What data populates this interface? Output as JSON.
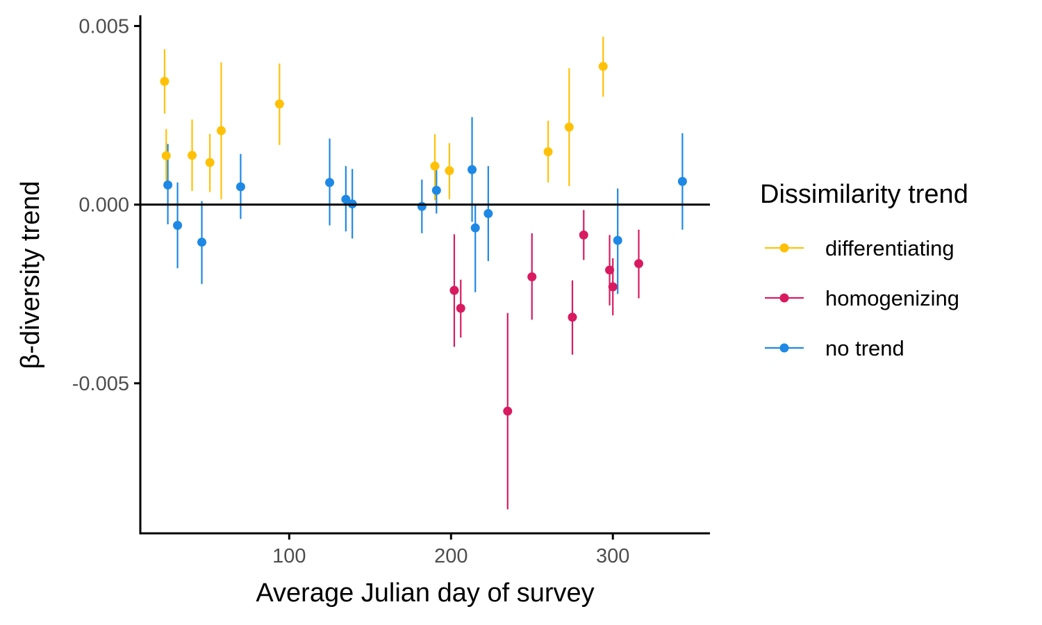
{
  "chart_data": {
    "type": "scatter",
    "xlabel": "Average Julian day of survey",
    "ylabel": "β-diversity trend",
    "xlim": [
      8,
      360
    ],
    "ylim": [
      -0.0092,
      0.0053
    ],
    "xticks": [
      100,
      200,
      300
    ],
    "xtick_labels": [
      "100",
      "200",
      "300"
    ],
    "yticks": [
      0.005,
      0.0,
      -0.005
    ],
    "ytick_labels": [
      "0.005",
      "0.000",
      "-0.005"
    ],
    "reference_line_y": 0,
    "grid": false,
    "legend": {
      "title": "Dissimilarity trend",
      "position": "right"
    },
    "series": [
      {
        "name": "differentiating",
        "color": "#FFC107",
        "points": [
          {
            "x": 23,
            "y": 0.00345,
            "lo": 0.00255,
            "hi": 0.00435
          },
          {
            "x": 24,
            "y": 0.00137,
            "lo": 0.00048,
            "hi": 0.00212
          },
          {
            "x": 40,
            "y": 0.00138,
            "lo": 0.00038,
            "hi": 0.00238
          },
          {
            "x": 51,
            "y": 0.00118,
            "lo": 0.00035,
            "hi": 0.00198
          },
          {
            "x": 58,
            "y": 0.00207,
            "lo": 0.00015,
            "hi": 0.00398
          },
          {
            "x": 94,
            "y": 0.00282,
            "lo": 0.00167,
            "hi": 0.00395
          },
          {
            "x": 190,
            "y": 0.00108,
            "lo": 0.00012,
            "hi": 0.00197
          },
          {
            "x": 199,
            "y": 0.00095,
            "lo": 0.00015,
            "hi": 0.00172
          },
          {
            "x": 260,
            "y": 0.00148,
            "lo": 0.00062,
            "hi": 0.00235
          },
          {
            "x": 273,
            "y": 0.00217,
            "lo": 0.00052,
            "hi": 0.00382
          },
          {
            "x": 294,
            "y": 0.00387,
            "lo": 0.00302,
            "hi": 0.0047
          }
        ]
      },
      {
        "name": "homogenizing",
        "color": "#D81B60",
        "points": [
          {
            "x": 202,
            "y": -0.0024,
            "lo": -0.00398,
            "hi": -0.00083
          },
          {
            "x": 206,
            "y": -0.0029,
            "lo": -0.00372,
            "hi": -0.0021
          },
          {
            "x": 235,
            "y": -0.00578,
            "lo": -0.00853,
            "hi": -0.00303
          },
          {
            "x": 250,
            "y": -0.00202,
            "lo": -0.00322,
            "hi": -0.0008
          },
          {
            "x": 275,
            "y": -0.00315,
            "lo": -0.0042,
            "hi": -0.00212
          },
          {
            "x": 282,
            "y": -0.00085,
            "lo": -0.00155,
            "hi": -0.00015
          },
          {
            "x": 298,
            "y": -0.00183,
            "lo": -0.00282,
            "hi": -0.00085
          },
          {
            "x": 300,
            "y": -0.0023,
            "lo": -0.0031,
            "hi": -0.0015
          },
          {
            "x": 316,
            "y": -0.00165,
            "lo": -0.00262,
            "hi": -0.0007
          }
        ]
      },
      {
        "name": "no trend",
        "color": "#1E88E5",
        "points": [
          {
            "x": 25,
            "y": 0.00055,
            "lo": -0.00055,
            "hi": 0.0017
          },
          {
            "x": 31,
            "y": -0.00058,
            "lo": -0.00178,
            "hi": 0.00062
          },
          {
            "x": 46,
            "y": -0.00105,
            "lo": -0.00222,
            "hi": 0.0001
          },
          {
            "x": 70,
            "y": 0.0005,
            "lo": -0.0004,
            "hi": 0.00142
          },
          {
            "x": 125,
            "y": 0.00062,
            "lo": -0.00058,
            "hi": 0.00185
          },
          {
            "x": 135,
            "y": 0.00015,
            "lo": -0.00075,
            "hi": 0.00108
          },
          {
            "x": 139,
            "y": 2e-05,
            "lo": -0.00095,
            "hi": 0.001
          },
          {
            "x": 182,
            "y": -5e-05,
            "lo": -0.0008,
            "hi": 0.0007
          },
          {
            "x": 191,
            "y": 0.0004,
            "lo": -0.00025,
            "hi": 0.00108
          },
          {
            "x": 213,
            "y": 0.00098,
            "lo": -0.00048,
            "hi": 0.00245
          },
          {
            "x": 215,
            "y": -0.00065,
            "lo": -0.00245,
            "hi": 0.0
          },
          {
            "x": 223,
            "y": -0.00025,
            "lo": -0.00158,
            "hi": 0.00108
          },
          {
            "x": 303,
            "y": -0.001,
            "lo": -0.0025,
            "hi": 0.00045
          },
          {
            "x": 343,
            "y": 0.00065,
            "lo": -0.0007,
            "hi": 0.002
          }
        ]
      }
    ]
  }
}
